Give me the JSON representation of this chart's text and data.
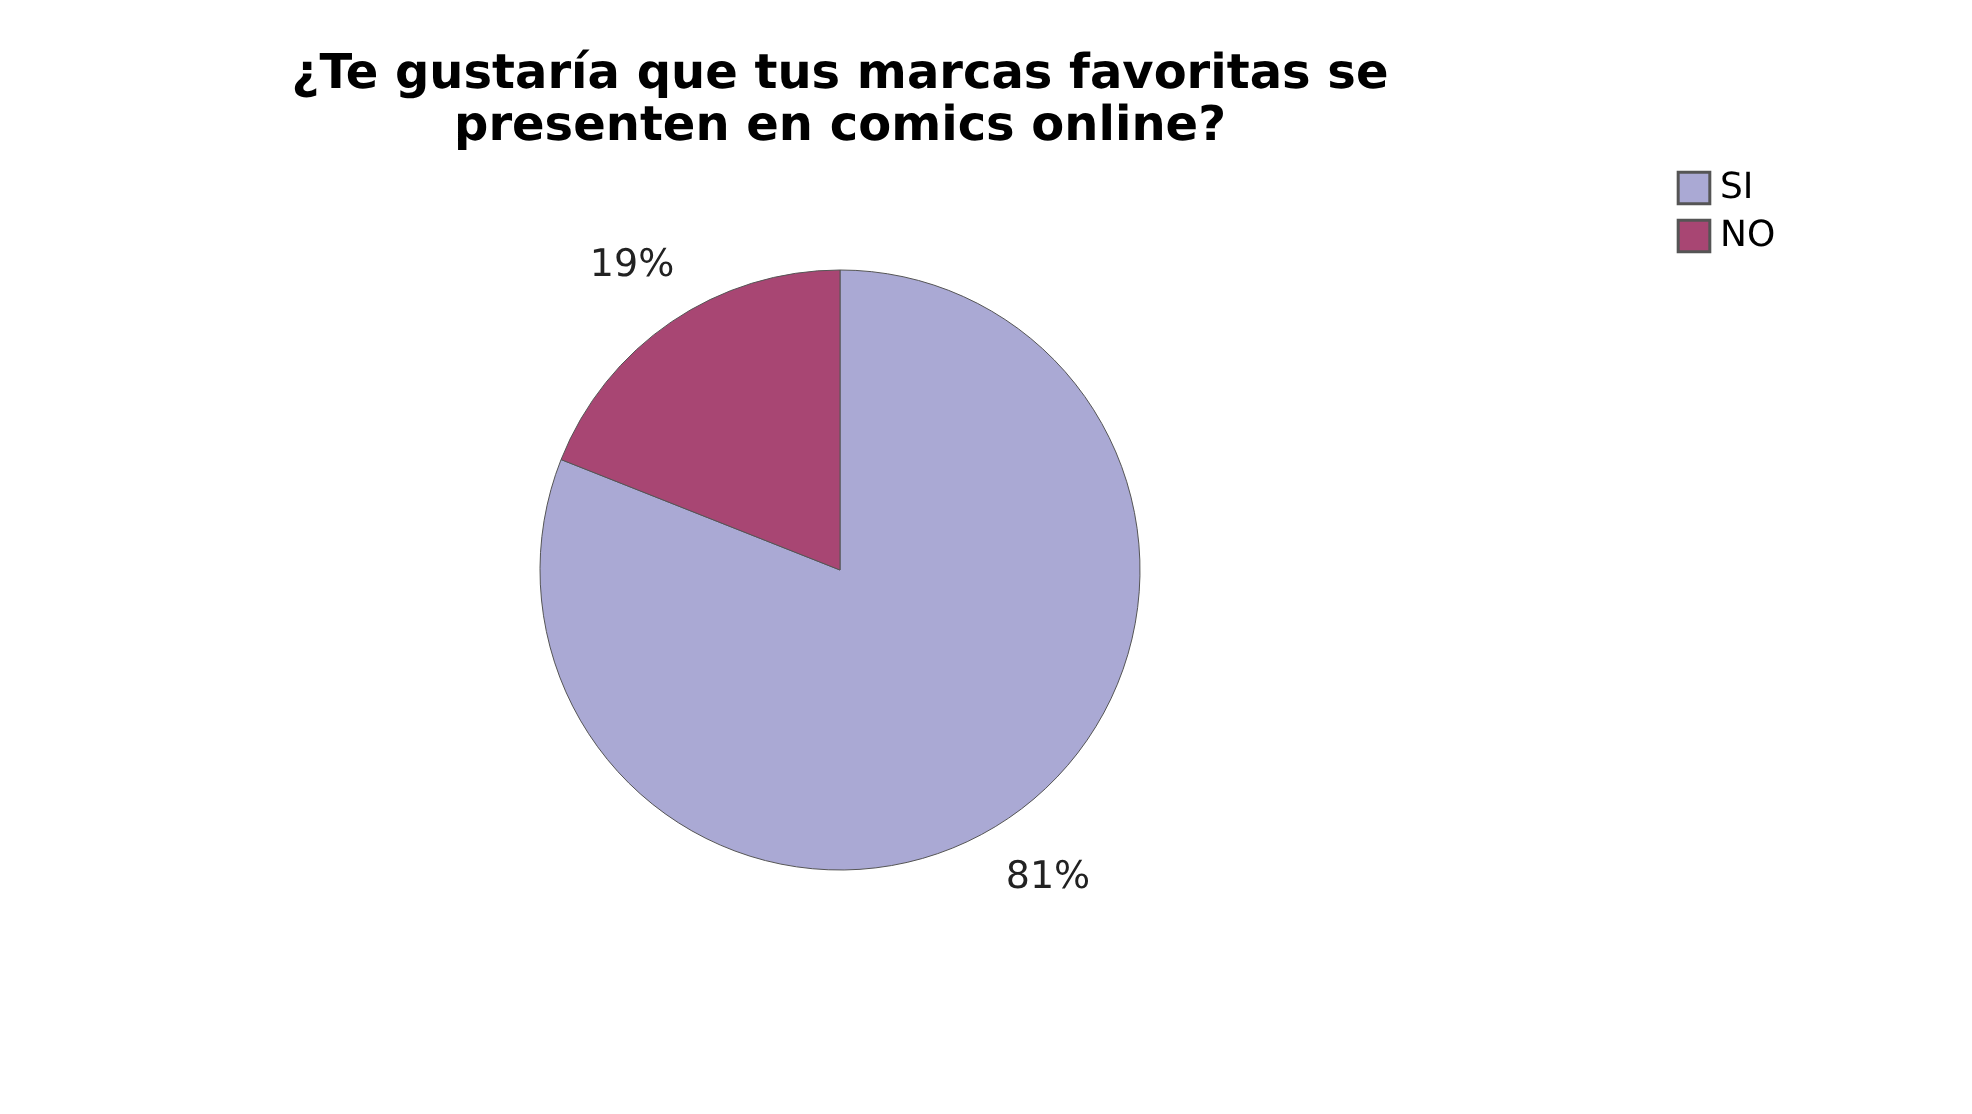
{
  "chart_data": {
    "type": "pie",
    "title": "¿Te gustaría que tus marcas favoritas se presenten en comics online?",
    "categories": [
      "SI",
      "NO"
    ],
    "values": [
      81,
      19
    ],
    "colors": [
      "#aaa9d4",
      "#a84673"
    ],
    "value_labels": [
      "81%",
      "19%"
    ],
    "legend": "right"
  }
}
